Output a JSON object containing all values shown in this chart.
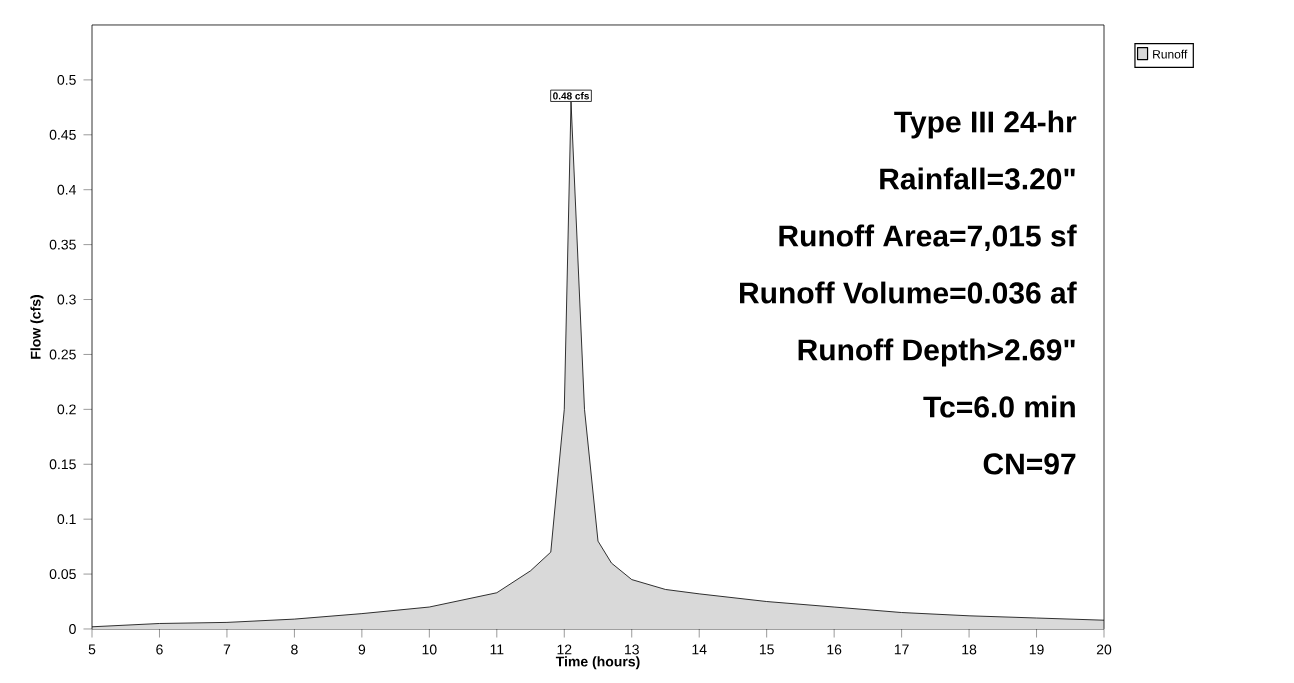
{
  "chart_data": {
    "type": "area",
    "xlabel": "Time  (hours)",
    "ylabel": "Flow  (cfs)",
    "series": [
      {
        "name": "Runoff",
        "color": "#000000",
        "x": [
          5,
          6,
          7,
          8,
          9,
          10,
          11,
          11.5,
          11.8,
          12.0,
          12.1,
          12.3,
          12.5,
          12.7,
          13,
          13.5,
          14,
          15,
          16,
          17,
          18,
          19,
          20
        ],
        "values": [
          0.002,
          0.005,
          0.006,
          0.009,
          0.014,
          0.02,
          0.033,
          0.053,
          0.07,
          0.2,
          0.48,
          0.2,
          0.08,
          0.06,
          0.045,
          0.036,
          0.032,
          0.025,
          0.02,
          0.015,
          0.012,
          0.01,
          0.008
        ]
      }
    ],
    "xlim": [
      5,
      20
    ],
    "ylim": [
      0,
      0.55
    ],
    "xticks": [
      5,
      6,
      7,
      8,
      9,
      10,
      11,
      12,
      13,
      14,
      15,
      16,
      17,
      18,
      19,
      20
    ],
    "yticks": [
      0,
      0.05,
      0.1,
      0.15,
      0.2,
      0.25,
      0.3,
      0.35,
      0.4,
      0.45,
      0.5
    ],
    "legend": "top right",
    "grid": false,
    "annotations": [
      {
        "text": "0.48 cfs",
        "x": 12.1,
        "y": 0.48
      },
      "Type III 24-hr",
      "Rainfall=3.20\"",
      "Runoff Area=7,015 sf",
      "Runoff Volume=0.036 af",
      "Runoff Depth>2.69\"",
      "Tc=6.0 min",
      "CN=97"
    ]
  }
}
